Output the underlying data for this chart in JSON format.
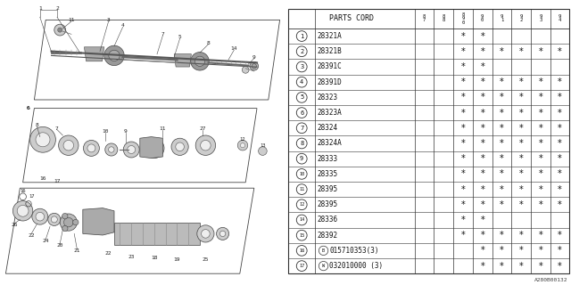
{
  "bg_color": "#ffffff",
  "rows": [
    {
      "num": "1",
      "part": "28321A",
      "stars": [
        0,
        0,
        1,
        1,
        0,
        0,
        0,
        0
      ],
      "special": null
    },
    {
      "num": "2",
      "part": "28321B",
      "stars": [
        0,
        0,
        1,
        1,
        1,
        1,
        1,
        1
      ],
      "special": null
    },
    {
      "num": "3",
      "part": "28391C",
      "stars": [
        0,
        0,
        1,
        1,
        0,
        0,
        0,
        0
      ],
      "special": null
    },
    {
      "num": "4",
      "part": "28391D",
      "stars": [
        0,
        0,
        1,
        1,
        1,
        1,
        1,
        1
      ],
      "special": null
    },
    {
      "num": "5",
      "part": "28323",
      "stars": [
        0,
        0,
        1,
        1,
        1,
        1,
        1,
        1
      ],
      "special": null
    },
    {
      "num": "6",
      "part": "28323A",
      "stars": [
        0,
        0,
        1,
        1,
        1,
        1,
        1,
        1
      ],
      "special": null
    },
    {
      "num": "7",
      "part": "28324",
      "stars": [
        0,
        0,
        1,
        1,
        1,
        1,
        1,
        1
      ],
      "special": null
    },
    {
      "num": "8",
      "part": "28324A",
      "stars": [
        0,
        0,
        1,
        1,
        1,
        1,
        1,
        1
      ],
      "special": null
    },
    {
      "num": "9",
      "part": "28333",
      "stars": [
        0,
        0,
        1,
        1,
        1,
        1,
        1,
        1
      ],
      "special": null
    },
    {
      "num": "10",
      "part": "28335",
      "stars": [
        0,
        0,
        1,
        1,
        1,
        1,
        1,
        1
      ],
      "special": null
    },
    {
      "num": "11",
      "part": "28395",
      "stars": [
        0,
        0,
        1,
        1,
        1,
        1,
        1,
        1
      ],
      "special": null
    },
    {
      "num": "12",
      "part": "28395",
      "stars": [
        0,
        0,
        1,
        1,
        1,
        1,
        1,
        1
      ],
      "special": null
    },
    {
      "num": "14",
      "part": "28336",
      "stars": [
        0,
        0,
        1,
        1,
        0,
        0,
        0,
        0
      ],
      "special": null
    },
    {
      "num": "15",
      "part": "28392",
      "stars": [
        0,
        0,
        1,
        1,
        1,
        1,
        1,
        1
      ],
      "special": null
    },
    {
      "num": "16",
      "part": "015710353(3)",
      "stars": [
        0,
        0,
        0,
        1,
        1,
        1,
        1,
        1
      ],
      "special": "B"
    },
    {
      "num": "17",
      "part": "032010000 (3)",
      "stars": [
        0,
        0,
        0,
        1,
        1,
        1,
        1,
        1
      ],
      "special": "W"
    }
  ],
  "year_headers": [
    "8\n7",
    "8\n8",
    "8\n9\n0",
    "9\n0",
    "9\n1",
    "9\n2",
    "9\n3",
    "9\n4"
  ],
  "footer": "A280B00132"
}
